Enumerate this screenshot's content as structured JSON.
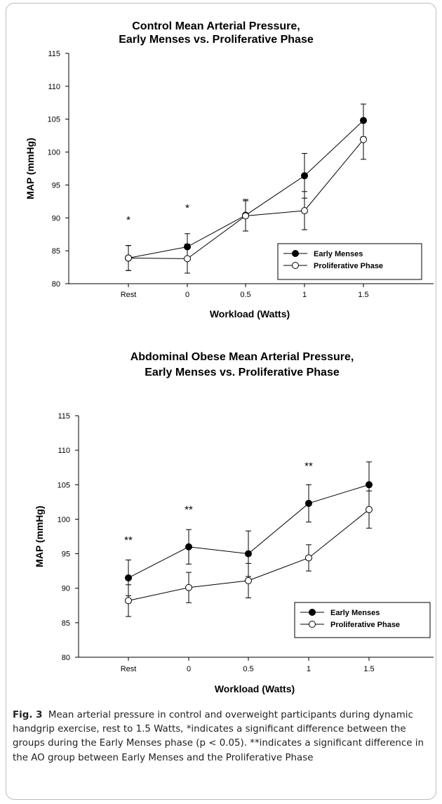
{
  "figure": {
    "label": "Fig. 3",
    "caption": "Mean arterial pressure in control and overweight participants during dynamic handgrip exercise, rest to 1.5 Watts, *indicates a significant difference between the groups during the Early Menses phase (p < 0.05). **indicates a significant difference in the AO group between Early Menses and the Proliferative Phase"
  },
  "chart_data": [
    {
      "type": "line",
      "title": [
        "Control Mean Arterial Pressure,",
        "Early Menses vs. Proliferative Phase"
      ],
      "xlabel": "Workload (Watts)",
      "ylabel": "MAP (mmHg)",
      "categories": [
        "Rest",
        "0",
        "0.5",
        "1",
        "1.5"
      ],
      "ylim": [
        80,
        115
      ],
      "yticks": [
        80,
        85,
        90,
        95,
        100,
        105,
        110,
        115
      ],
      "legend_position": "bottom-right",
      "series": [
        {
          "name": "Early Menses",
          "marker": "filled-circle",
          "values": [
            83.9,
            85.6,
            90.4,
            96.4,
            104.8
          ],
          "errors": [
            1.9,
            2.0,
            2.4,
            3.4,
            2.5
          ]
        },
        {
          "name": "Proliferative Phase",
          "marker": "open-circle",
          "values": [
            83.9,
            83.8,
            90.3,
            91.1,
            101.9
          ],
          "errors": [
            1.9,
            2.2,
            2.3,
            2.9,
            3.0
          ]
        }
      ],
      "annotations": [
        {
          "category": "Rest",
          "text": "*",
          "y": 89.2
        },
        {
          "category": "0",
          "text": "*",
          "y": 91.0
        }
      ]
    },
    {
      "type": "line",
      "title": [
        "Abdominal Obese Mean Arterial Pressure,",
        "Early Menses vs. Proliferative Phase"
      ],
      "xlabel": "Workload (Watts)",
      "ylabel": "MAP (mmHg)",
      "categories": [
        "Rest",
        "0",
        "0.5",
        "1",
        "1.5"
      ],
      "ylim": [
        80,
        115
      ],
      "yticks": [
        80,
        85,
        90,
        95,
        100,
        105,
        110,
        115
      ],
      "legend_position": "bottom-right",
      "series": [
        {
          "name": "Early Menses",
          "marker": "filled-circle",
          "values": [
            91.5,
            96.0,
            95.0,
            102.3,
            105.0
          ],
          "errors": [
            2.6,
            2.5,
            3.3,
            2.7,
            3.3
          ]
        },
        {
          "name": "Proliferative Phase",
          "marker": "open-circle",
          "values": [
            88.2,
            90.1,
            91.1,
            94.4,
            101.4
          ],
          "errors": [
            2.3,
            2.2,
            2.5,
            1.9,
            2.7
          ]
        }
      ],
      "annotations": [
        {
          "category": "Rest",
          "text": "**",
          "y": 96.5
        },
        {
          "category": "0",
          "text": "**",
          "y": 100.9
        },
        {
          "category": "1",
          "text": "**",
          "y": 107.2
        }
      ]
    }
  ]
}
